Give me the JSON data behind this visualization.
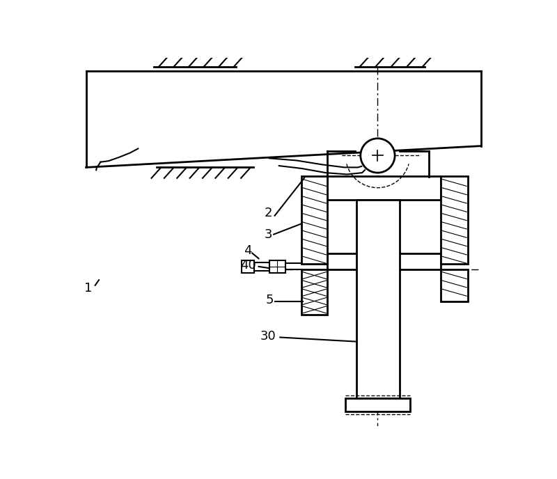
{
  "bg_color": "#ffffff",
  "line_color": "#000000",
  "fig_width": 8.0,
  "fig_height": 6.88,
  "dpi": 100
}
